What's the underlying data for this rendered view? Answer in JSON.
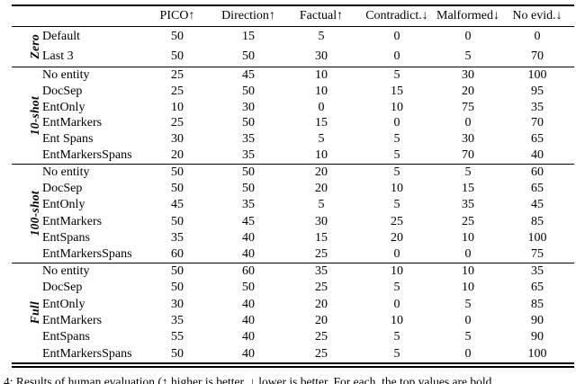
{
  "page": {
    "background": "#ffffff",
    "text_color": "#000000",
    "rule_color": "#000000"
  },
  "table": {
    "columns": [
      "PICO↑",
      "Direction↑",
      "Factual↑",
      "Contradict.↓",
      "Malformed↓",
      "No evid.↓"
    ],
    "groups": [
      {
        "label": "Zero",
        "rows": [
          {
            "label": "Default",
            "values": [
              "50",
              "15",
              "5",
              "0",
              "0",
              "0"
            ]
          },
          {
            "label": "Last 3",
            "values": [
              "50",
              "50",
              "30",
              "0",
              "5",
              "70"
            ]
          }
        ]
      },
      {
        "label": "10-shot",
        "rows": [
          {
            "label": "No entity",
            "values": [
              "25",
              "45",
              "10",
              "5",
              "30",
              "100"
            ]
          },
          {
            "label": "DocSep",
            "values": [
              "25",
              "50",
              "10",
              "15",
              "20",
              "95"
            ]
          },
          {
            "label": "EntOnly",
            "values": [
              "10",
              "30",
              "0",
              "10",
              "75",
              "35"
            ]
          },
          {
            "label": "EntMarkers",
            "values": [
              "25",
              "50",
              "15",
              "0",
              "0",
              "70"
            ]
          },
          {
            "label": "Ent Spans",
            "values": [
              "30",
              "35",
              "5",
              "5",
              "30",
              "65"
            ]
          },
          {
            "label": "EntMarkersSpans",
            "values": [
              "20",
              "35",
              "10",
              "5",
              "70",
              "40"
            ]
          }
        ]
      },
      {
        "label": "100-shot",
        "rows": [
          {
            "label": "No entity",
            "values": [
              "50",
              "50",
              "20",
              "5",
              "5",
              "60"
            ]
          },
          {
            "label": "DocSep",
            "values": [
              "50",
              "50",
              "20",
              "10",
              "15",
              "65"
            ]
          },
          {
            "label": "EntOnly",
            "values": [
              "45",
              "35",
              "5",
              "5",
              "35",
              "45"
            ]
          },
          {
            "label": "EntMarkers",
            "values": [
              "50",
              "45",
              "30",
              "25",
              "25",
              "85"
            ]
          },
          {
            "label": "EntSpans",
            "values": [
              "35",
              "40",
              "15",
              "20",
              "10",
              "100"
            ]
          },
          {
            "label": "EntMarkersSpans",
            "values": [
              "60",
              "40",
              "25",
              "0",
              "0",
              "75"
            ]
          }
        ]
      },
      {
        "label": "Full",
        "rows": [
          {
            "label": "No entity",
            "values": [
              "50",
              "60",
              "35",
              "10",
              "10",
              "35"
            ]
          },
          {
            "label": "DocSep",
            "values": [
              "50",
              "50",
              "25",
              "5",
              "10",
              "65"
            ]
          },
          {
            "label": "EntOnly",
            "values": [
              "30",
              "40",
              "20",
              "0",
              "5",
              "85"
            ]
          },
          {
            "label": "EntMarkers",
            "values": [
              "35",
              "40",
              "20",
              "10",
              "0",
              "90"
            ]
          },
          {
            "label": "EntSpans",
            "values": [
              "55",
              "40",
              "25",
              "5",
              "5",
              "90"
            ]
          },
          {
            "label": "EntMarkersSpans",
            "values": [
              "50",
              "40",
              "25",
              "5",
              "0",
              "100"
            ]
          }
        ]
      }
    ]
  },
  "caption": {
    "text": "4: Results of human evaluation (↑ higher is better, ↓ lower is better. For each, the top values are bold."
  }
}
